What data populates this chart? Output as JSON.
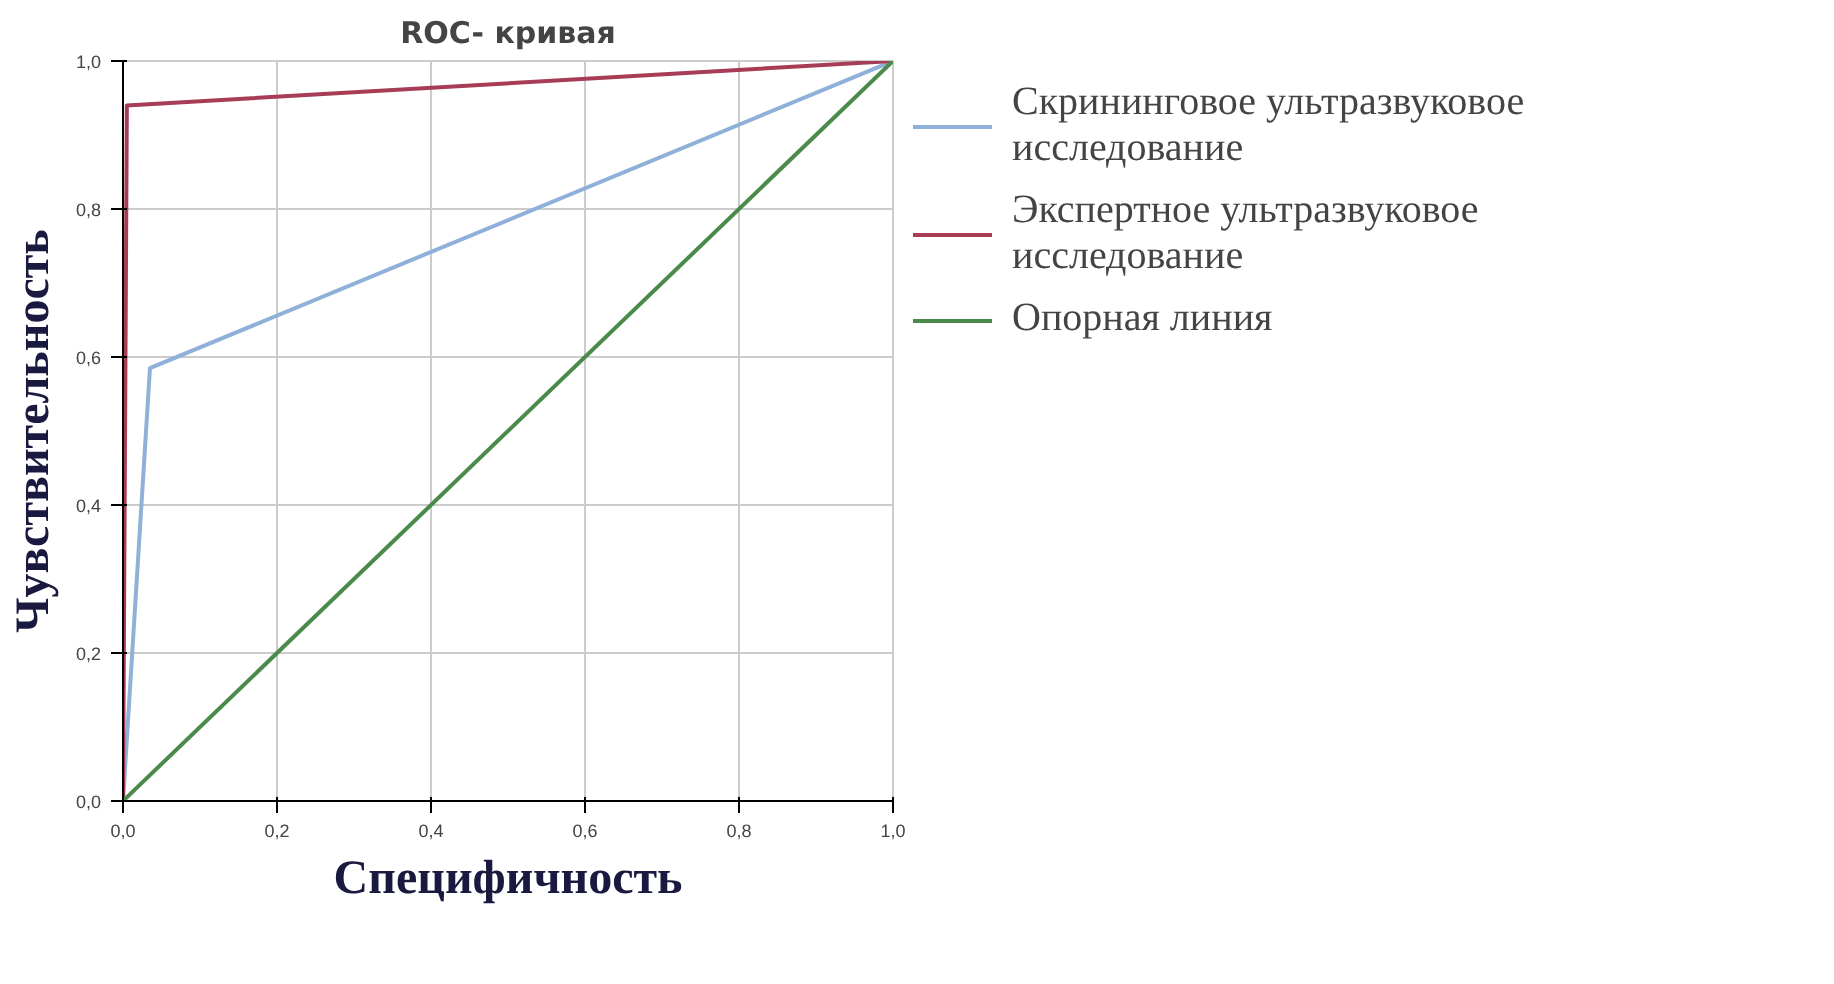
{
  "chart_data": {
    "type": "line",
    "title": "ROC- кривая",
    "xlabel": "Специфичность",
    "ylabel": "Чувствительность",
    "series": [
      {
        "name": "Скрининговое ультразвуковое исследование",
        "color": "#8fb0d8",
        "x": [
          0,
          0.035,
          1
        ],
        "values": [
          0,
          0.585,
          1
        ]
      },
      {
        "name": "Экспертное ультразвуковое исследование",
        "color": "#a63d55",
        "x": [
          0,
          0.005,
          1
        ],
        "values": [
          0,
          0.94,
          1
        ]
      },
      {
        "name": "Опорная линия",
        "color": "#4a8a4a",
        "x": [
          0,
          1
        ],
        "values": [
          0,
          1
        ]
      }
    ],
    "xlim": [
      0,
      1
    ],
    "ylim": [
      0,
      1
    ],
    "xticks": [
      {
        "value": 0,
        "label": "0,0"
      },
      {
        "value": 0.2,
        "label": "0,2"
      },
      {
        "value": 0.4,
        "label": "0,4"
      },
      {
        "value": 0.6,
        "label": "0,6"
      },
      {
        "value": 0.8,
        "label": "0,8"
      },
      {
        "value": 1,
        "label": "1,0"
      }
    ],
    "yticks": [
      {
        "value": 0,
        "label": "0,0"
      },
      {
        "value": 0.2,
        "label": "0,2"
      },
      {
        "value": 0.4,
        "label": "0,4"
      },
      {
        "value": 0.6,
        "label": "0,6"
      },
      {
        "value": 0.8,
        "label": "0,8"
      },
      {
        "value": 1,
        "label": "1,0"
      }
    ],
    "grid": true,
    "legend": "right",
    "marker": "none"
  }
}
